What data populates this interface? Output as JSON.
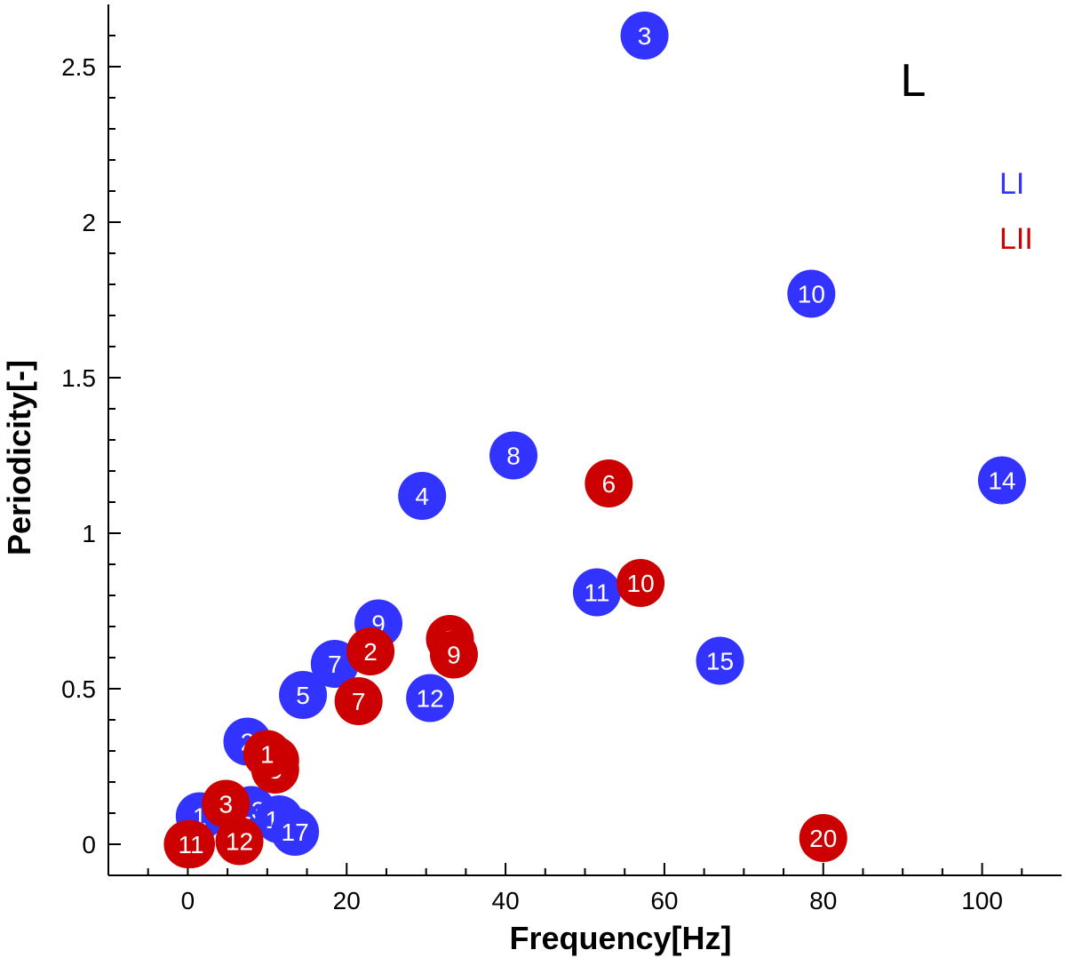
{
  "chart_data": {
    "type": "scatter",
    "panel_label": "L",
    "xlabel": "Frequency[Hz]",
    "ylabel": "Periodicity[-]",
    "xlim": [
      -10,
      110
    ],
    "ylim": [
      -0.1,
      2.7
    ],
    "x_ticks": [
      0,
      20,
      40,
      60,
      80,
      100
    ],
    "y_ticks": [
      0,
      0.5,
      1,
      1.5,
      2,
      2.5
    ],
    "x_tick_labels": [
      "0",
      "20",
      "40",
      "60",
      "80",
      "100"
    ],
    "y_tick_labels": [
      "0",
      "0.5",
      "1",
      "1.5",
      "2",
      "2.5"
    ],
    "legend_position": "right",
    "series": [
      {
        "name": "LI",
        "color": "#3333ff",
        "points": [
          {
            "label": "1",
            "x": 1.5,
            "y": 0.09
          },
          {
            "label": "2",
            "x": 7.5,
            "y": 0.33
          },
          {
            "label": "3",
            "x": 57.5,
            "y": 2.6
          },
          {
            "label": "4",
            "x": 29.5,
            "y": 1.12
          },
          {
            "label": "5",
            "x": 14.5,
            "y": 0.48
          },
          {
            "label": "7",
            "x": 18.5,
            "y": 0.58
          },
          {
            "label": "8",
            "x": 41.0,
            "y": 1.25
          },
          {
            "label": "9",
            "x": 24.0,
            "y": 0.71
          },
          {
            "label": "10",
            "x": 78.5,
            "y": 1.77
          },
          {
            "label": "11",
            "x": 51.5,
            "y": 0.81
          },
          {
            "label": "12",
            "x": 30.5,
            "y": 0.47
          },
          {
            "label": "13",
            "x": 8.0,
            "y": 0.11
          },
          {
            "label": "14",
            "x": 102.5,
            "y": 1.17
          },
          {
            "label": "15",
            "x": 67.0,
            "y": 0.59
          },
          {
            "label": "16",
            "x": 11.5,
            "y": 0.08
          },
          {
            "label": "17",
            "x": 13.5,
            "y": 0.04
          }
        ]
      },
      {
        "name": "LII",
        "color": "#cc0000",
        "points": [
          {
            "label": "2",
            "x": 23.0,
            "y": 0.62
          },
          {
            "label": "3",
            "x": 4.8,
            "y": 0.13
          },
          {
            "label": "4",
            "x": 11.0,
            "y": 0.27
          },
          {
            "label": "5",
            "x": 11.0,
            "y": 0.24
          },
          {
            "label": "1",
            "x": 10.0,
            "y": 0.29
          },
          {
            "label": "6",
            "x": 53.0,
            "y": 1.16
          },
          {
            "label": "7",
            "x": 21.5,
            "y": 0.46
          },
          {
            "label": "8",
            "x": 33.0,
            "y": 0.66
          },
          {
            "label": "9",
            "x": 33.5,
            "y": 0.61
          },
          {
            "label": "10",
            "x": 57.0,
            "y": 0.84
          },
          {
            "label": "12",
            "x": 6.5,
            "y": 0.01
          },
          {
            "label": "20",
            "x": 80.0,
            "y": 0.02
          },
          {
            "label": "21",
            "x": 0.0,
            "y": 0.0
          },
          {
            "label": "18",
            "x": 0.2,
            "y": 0.0
          },
          {
            "label": "11",
            "x": 0.4,
            "y": 0.0
          }
        ]
      }
    ]
  }
}
